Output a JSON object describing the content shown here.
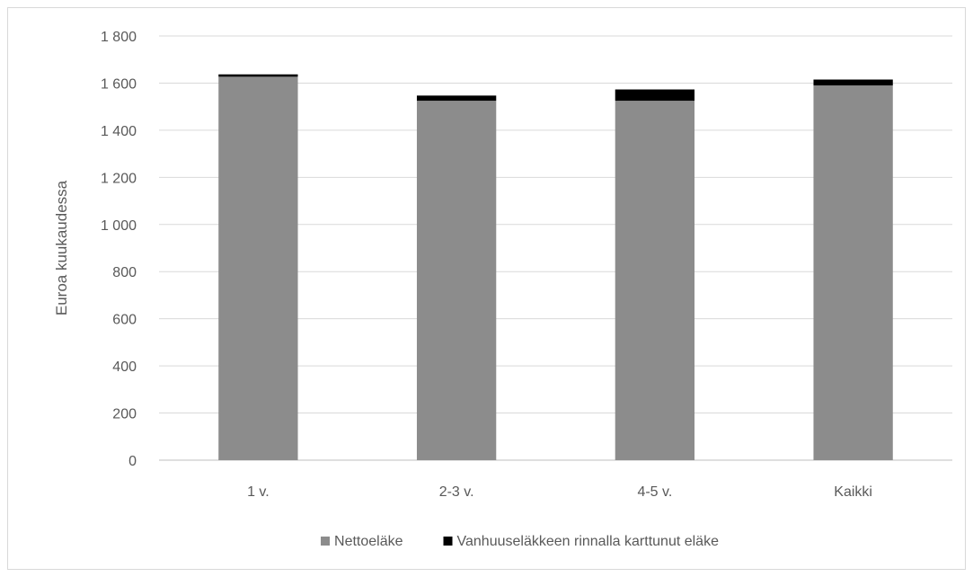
{
  "chart_data": {
    "type": "bar",
    "stacked": true,
    "categories": [
      "1 v.",
      "2-3 v.",
      "4-5 v.",
      "Kaikki"
    ],
    "series": [
      {
        "name": "Nettoeläke",
        "values": [
          1627,
          1525,
          1525,
          1590
        ],
        "color": "#8c8c8c"
      },
      {
        "name": "Vanhuuseläkkeen rinnalla karttunut eläke",
        "values": [
          10,
          22,
          48,
          25
        ],
        "color": "#000000"
      }
    ],
    "title": "",
    "xlabel": "",
    "ylabel": "Euroa kuukaudessa",
    "ylim": [
      0,
      1800
    ],
    "yticks": [
      0,
      200,
      400,
      600,
      800,
      1000,
      1200,
      1400,
      1600,
      1800
    ],
    "ytick_labels": [
      "0",
      "200",
      "400",
      "600",
      "800",
      "1 000",
      "1 200",
      "1 400",
      "1 600",
      "1 800"
    ],
    "grid": true,
    "legend_position": "bottom"
  }
}
